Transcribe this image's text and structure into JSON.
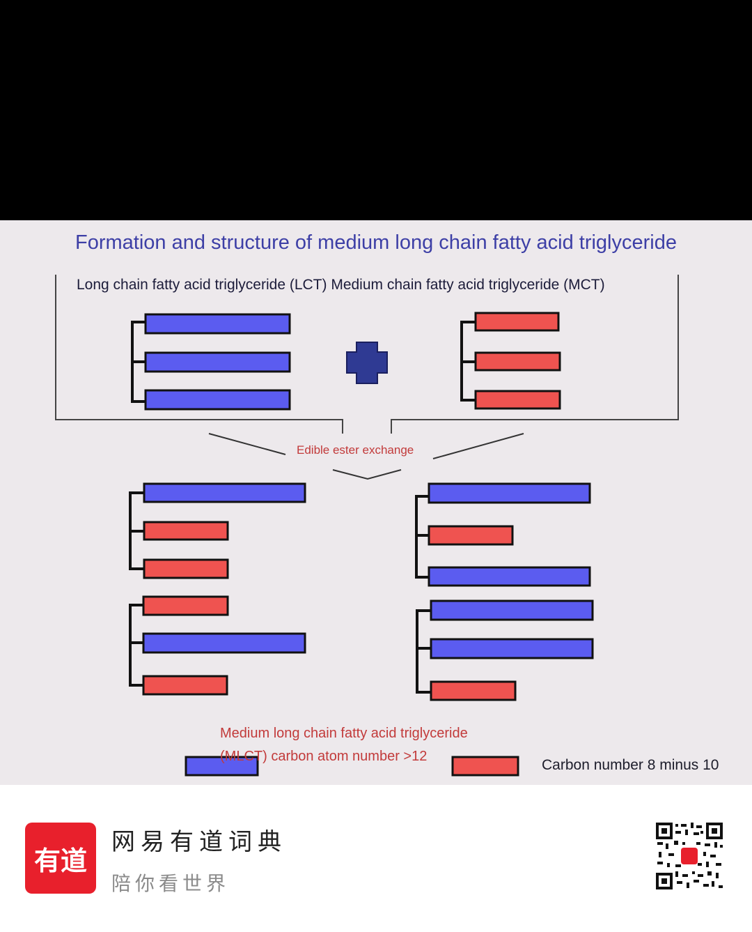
{
  "slide": {
    "title": "Formation and structure of medium long chain fatty acid triglyceride",
    "subtitle": "Long chain fatty acid triglyceride (LCT) Medium chain fatty acid triglyceride (MCT)",
    "exchange_label": "Edible ester exchange",
    "mlct_line1": "Medium long chain fatty acid triglyceride",
    "mlct_line2": "(MLCT) carbon atom number >12",
    "carbon_short": "Carbon number 8 minus 10"
  },
  "colors": {
    "long_chain": "#5b5cf0",
    "medium_chain": "#ef5350",
    "plus": "#2f3a93",
    "title": "#3d3fa6",
    "label_red": "#c23a3a"
  },
  "footer": {
    "logo_text": "有道",
    "brand_name": "网易有道词典",
    "slogan": "陪你看世界"
  }
}
